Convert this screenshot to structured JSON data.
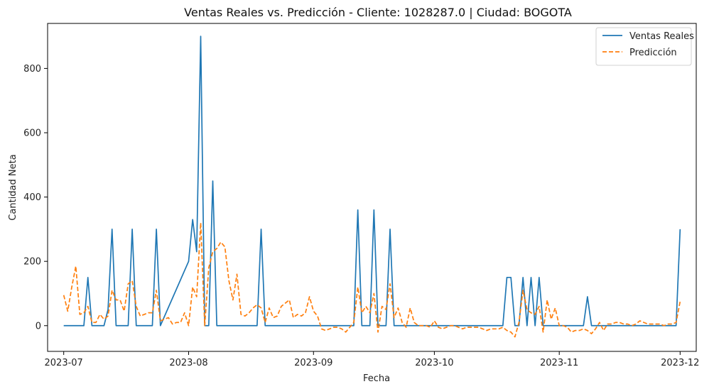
{
  "chart_data": {
    "type": "line",
    "title": "Ventas Reales vs. Predicción - Cliente: 1028287.0 | Ciudad: BOGOTA",
    "xlabel": "Fecha",
    "ylabel": "Cantidad Neta",
    "x_ticks": [
      "2023-07",
      "2023-08",
      "2023-09",
      "2023-10",
      "2023-11",
      "2023-12"
    ],
    "y_ticks": [
      0,
      200,
      400,
      600,
      800
    ],
    "xlim": [
      "2023-06-27",
      "2023-12-05"
    ],
    "ylim": [
      -80,
      940
    ],
    "grid": false,
    "legend": "top-right",
    "series": [
      {
        "name": "Ventas Reales",
        "style": "solid",
        "color": "#1f77b4",
        "points": [
          [
            "2023-07-01",
            0
          ],
          [
            "2023-07-06",
            0
          ],
          [
            "2023-07-07",
            150
          ],
          [
            "2023-07-08",
            0
          ],
          [
            "2023-07-11",
            0
          ],
          [
            "2023-07-12",
            50
          ],
          [
            "2023-07-13",
            300
          ],
          [
            "2023-07-14",
            0
          ],
          [
            "2023-07-17",
            0
          ],
          [
            "2023-07-18",
            300
          ],
          [
            "2023-07-19",
            0
          ],
          [
            "2023-07-23",
            0
          ],
          [
            "2023-07-24",
            300
          ],
          [
            "2023-07-25",
            0
          ],
          [
            "2023-08-01",
            200
          ],
          [
            "2023-08-02",
            330
          ],
          [
            "2023-08-03",
            230
          ],
          [
            "2023-08-04",
            900
          ],
          [
            "2023-08-05",
            0
          ],
          [
            "2023-08-06",
            0
          ],
          [
            "2023-08-07",
            450
          ],
          [
            "2023-08-08",
            0
          ],
          [
            "2023-08-18",
            0
          ],
          [
            "2023-08-19",
            300
          ],
          [
            "2023-08-20",
            0
          ],
          [
            "2023-09-11",
            0
          ],
          [
            "2023-09-12",
            360
          ],
          [
            "2023-09-13",
            0
          ],
          [
            "2023-09-15",
            0
          ],
          [
            "2023-09-16",
            360
          ],
          [
            "2023-09-17",
            0
          ],
          [
            "2023-09-19",
            0
          ],
          [
            "2023-09-20",
            300
          ],
          [
            "2023-09-21",
            0
          ],
          [
            "2023-10-18",
            0
          ],
          [
            "2023-10-19",
            150
          ],
          [
            "2023-10-20",
            150
          ],
          [
            "2023-10-21",
            0
          ],
          [
            "2023-10-22",
            0
          ],
          [
            "2023-10-23",
            150
          ],
          [
            "2023-10-24",
            0
          ],
          [
            "2023-10-25",
            150
          ],
          [
            "2023-10-26",
            0
          ],
          [
            "2023-10-27",
            150
          ],
          [
            "2023-10-28",
            0
          ],
          [
            "2023-11-07",
            0
          ],
          [
            "2023-11-08",
            90
          ],
          [
            "2023-11-09",
            0
          ],
          [
            "2023-11-30",
            0
          ],
          [
            "2023-12-01",
            300
          ]
        ]
      },
      {
        "name": "Predicción",
        "style": "dashed",
        "color": "#ff7f0e",
        "points": [
          [
            "2023-07-01",
            95
          ],
          [
            "2023-07-02",
            45
          ],
          [
            "2023-07-03",
            120
          ],
          [
            "2023-07-04",
            185
          ],
          [
            "2023-07-05",
            35
          ],
          [
            "2023-07-06",
            40
          ],
          [
            "2023-07-07",
            60
          ],
          [
            "2023-07-08",
            10
          ],
          [
            "2023-07-09",
            10
          ],
          [
            "2023-07-10",
            35
          ],
          [
            "2023-07-11",
            20
          ],
          [
            "2023-07-12",
            30
          ],
          [
            "2023-07-13",
            110
          ],
          [
            "2023-07-14",
            80
          ],
          [
            "2023-07-15",
            80
          ],
          [
            "2023-07-16",
            45
          ],
          [
            "2023-07-17",
            130
          ],
          [
            "2023-07-18",
            140
          ],
          [
            "2023-07-19",
            60
          ],
          [
            "2023-07-20",
            30
          ],
          [
            "2023-07-21",
            35
          ],
          [
            "2023-07-22",
            40
          ],
          [
            "2023-07-23",
            40
          ],
          [
            "2023-07-24",
            110
          ],
          [
            "2023-07-25",
            15
          ],
          [
            "2023-07-26",
            20
          ],
          [
            "2023-07-27",
            25
          ],
          [
            "2023-07-28",
            5
          ],
          [
            "2023-07-29",
            10
          ],
          [
            "2023-07-30",
            10
          ],
          [
            "2023-07-31",
            40
          ],
          [
            "2023-08-01",
            0
          ],
          [
            "2023-08-02",
            120
          ],
          [
            "2023-08-03",
            90
          ],
          [
            "2023-08-04",
            320
          ],
          [
            "2023-08-05",
            0
          ],
          [
            "2023-08-06",
            180
          ],
          [
            "2023-08-07",
            230
          ],
          [
            "2023-08-08",
            240
          ],
          [
            "2023-08-09",
            260
          ],
          [
            "2023-08-10",
            245
          ],
          [
            "2023-08-11",
            140
          ],
          [
            "2023-08-12",
            80
          ],
          [
            "2023-08-13",
            160
          ],
          [
            "2023-08-14",
            35
          ],
          [
            "2023-08-15",
            30
          ],
          [
            "2023-08-16",
            40
          ],
          [
            "2023-08-17",
            55
          ],
          [
            "2023-08-18",
            65
          ],
          [
            "2023-08-19",
            55
          ],
          [
            "2023-08-20",
            10
          ],
          [
            "2023-08-21",
            55
          ],
          [
            "2023-08-22",
            25
          ],
          [
            "2023-08-23",
            30
          ],
          [
            "2023-08-24",
            60
          ],
          [
            "2023-08-25",
            70
          ],
          [
            "2023-08-26",
            80
          ],
          [
            "2023-08-27",
            25
          ],
          [
            "2023-08-28",
            35
          ],
          [
            "2023-08-29",
            30
          ],
          [
            "2023-08-30",
            40
          ],
          [
            "2023-08-31",
            90
          ],
          [
            "2023-09-01",
            45
          ],
          [
            "2023-09-02",
            30
          ],
          [
            "2023-09-03",
            -10
          ],
          [
            "2023-09-04",
            -15
          ],
          [
            "2023-09-05",
            -10
          ],
          [
            "2023-09-06",
            -5
          ],
          [
            "2023-09-07",
            -5
          ],
          [
            "2023-09-08",
            -10
          ],
          [
            "2023-09-09",
            -20
          ],
          [
            "2023-09-10",
            -5
          ],
          [
            "2023-09-11",
            10
          ],
          [
            "2023-09-12",
            120
          ],
          [
            "2023-09-13",
            40
          ],
          [
            "2023-09-14",
            60
          ],
          [
            "2023-09-15",
            40
          ],
          [
            "2023-09-16",
            100
          ],
          [
            "2023-09-17",
            -20
          ],
          [
            "2023-09-18",
            60
          ],
          [
            "2023-09-19",
            50
          ],
          [
            "2023-09-20",
            130
          ],
          [
            "2023-09-21",
            25
          ],
          [
            "2023-09-22",
            55
          ],
          [
            "2023-09-23",
            10
          ],
          [
            "2023-09-24",
            -5
          ],
          [
            "2023-09-25",
            55
          ],
          [
            "2023-09-26",
            10
          ],
          [
            "2023-09-27",
            0
          ],
          [
            "2023-09-28",
            0
          ],
          [
            "2023-09-29",
            0
          ],
          [
            "2023-09-30",
            -5
          ],
          [
            "2023-10-01",
            15
          ],
          [
            "2023-10-02",
            -5
          ],
          [
            "2023-10-03",
            -10
          ],
          [
            "2023-10-04",
            -5
          ],
          [
            "2023-10-05",
            0
          ],
          [
            "2023-10-06",
            0
          ],
          [
            "2023-10-07",
            -5
          ],
          [
            "2023-10-08",
            -10
          ],
          [
            "2023-10-09",
            -5
          ],
          [
            "2023-10-10",
            -5
          ],
          [
            "2023-10-11",
            -5
          ],
          [
            "2023-10-12",
            -5
          ],
          [
            "2023-10-13",
            -10
          ],
          [
            "2023-10-14",
            -15
          ],
          [
            "2023-10-15",
            -10
          ],
          [
            "2023-10-16",
            -10
          ],
          [
            "2023-10-17",
            -10
          ],
          [
            "2023-10-18",
            -5
          ],
          [
            "2023-10-19",
            -15
          ],
          [
            "2023-10-20",
            -20
          ],
          [
            "2023-10-21",
            -35
          ],
          [
            "2023-10-22",
            10
          ],
          [
            "2023-10-23",
            110
          ],
          [
            "2023-10-24",
            50
          ],
          [
            "2023-10-25",
            40
          ],
          [
            "2023-10-26",
            35
          ],
          [
            "2023-10-27",
            60
          ],
          [
            "2023-10-28",
            -20
          ],
          [
            "2023-10-29",
            80
          ],
          [
            "2023-10-30",
            20
          ],
          [
            "2023-10-31",
            55
          ],
          [
            "2023-11-01",
            0
          ],
          [
            "2023-11-02",
            0
          ],
          [
            "2023-11-03",
            -5
          ],
          [
            "2023-11-04",
            -20
          ],
          [
            "2023-11-05",
            -15
          ],
          [
            "2023-11-06",
            -15
          ],
          [
            "2023-11-07",
            -10
          ],
          [
            "2023-11-08",
            -15
          ],
          [
            "2023-11-09",
            -25
          ],
          [
            "2023-11-10",
            -10
          ],
          [
            "2023-11-11",
            10
          ],
          [
            "2023-11-12",
            -15
          ],
          [
            "2023-11-13",
            5
          ],
          [
            "2023-11-14",
            5
          ],
          [
            "2023-11-15",
            10
          ],
          [
            "2023-11-16",
            10
          ],
          [
            "2023-11-17",
            5
          ],
          [
            "2023-11-18",
            5
          ],
          [
            "2023-11-19",
            0
          ],
          [
            "2023-11-20",
            5
          ],
          [
            "2023-11-21",
            15
          ],
          [
            "2023-11-22",
            10
          ],
          [
            "2023-11-23",
            5
          ],
          [
            "2023-11-24",
            5
          ],
          [
            "2023-11-25",
            5
          ],
          [
            "2023-11-26",
            5
          ],
          [
            "2023-11-27",
            0
          ],
          [
            "2023-11-28",
            5
          ],
          [
            "2023-11-29",
            5
          ],
          [
            "2023-11-30",
            10
          ],
          [
            "2023-12-01",
            75
          ]
        ]
      }
    ]
  }
}
